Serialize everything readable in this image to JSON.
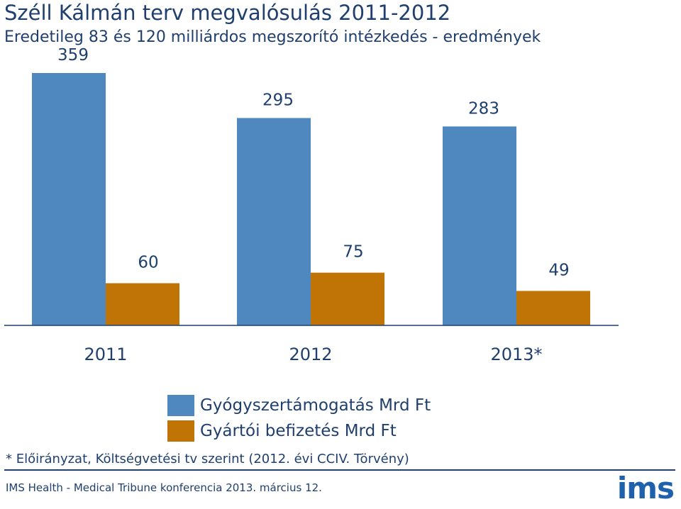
{
  "header": {
    "title": "Széll Kálmán terv megvalósulás 2011-2012",
    "subtitle": "Eredetileg 83 és 120 milliárdos megszorító intézkedés - eredmények"
  },
  "chart_data": {
    "type": "bar",
    "categories": [
      "2011",
      "2012",
      "2013*"
    ],
    "series": [
      {
        "name": "Gyógyszertámogatás Mrd Ft",
        "values": [
          359,
          295,
          283
        ],
        "color": "#4f88be"
      },
      {
        "name": "Gyártói befizetés Mrd Ft",
        "values": [
          60,
          75,
          49
        ],
        "color": "#c07406"
      }
    ],
    "ylim": [
      0,
      359
    ],
    "grid": false,
    "legend_position": "bottom-center"
  },
  "legend": {
    "items": [
      {
        "label": "Gyógyszertámogatás Mrd Ft",
        "color": "#4f88be"
      },
      {
        "label": "Gyártói befizetés Mrd Ft",
        "color": "#c07406"
      }
    ]
  },
  "footnote": "* Előirányzat, Költségvetési tv szerint (2012. évi CCIV. Törvény)",
  "footer": {
    "text": "IMS Health - Medical Tribune konferencia 2013. március 12.",
    "logo_text": "ims",
    "logo_color": "#1e61ad"
  }
}
